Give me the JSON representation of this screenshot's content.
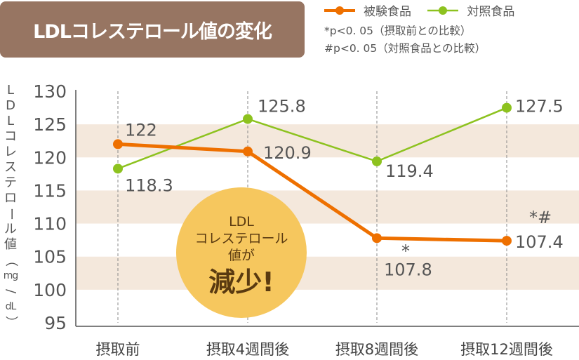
{
  "chart_data": {
    "type": "line",
    "title": "LDLコレステロール値の変化",
    "ylabel": "LDLコレステロール値（mg/dL）",
    "ylim": [
      95,
      130
    ],
    "yticks": [
      130,
      125,
      120,
      115,
      110,
      105,
      100,
      95
    ],
    "grid": "alternating horizontal bands",
    "categories": [
      "摂取前",
      "摂取4週間後",
      "摂取8週間後",
      "摂取12週間後"
    ],
    "series": [
      {
        "name": "被験食品",
        "color": "#ee7000",
        "values": [
          122,
          120.9,
          107.8,
          107.4
        ],
        "labels": [
          "122",
          "120.9",
          "107.8",
          "107.4"
        ],
        "marks": [
          "",
          "",
          "*",
          "*#"
        ]
      },
      {
        "name": "対照食品",
        "color": "#8dc21f",
        "values": [
          118.3,
          125.8,
          119.4,
          127.5
        ],
        "labels": [
          "118.3",
          "125.8",
          "119.4",
          "127.5"
        ]
      }
    ],
    "legend_position": "top-right",
    "notes": [
      "*p<0. 05（摂取前との比較）",
      "#p<0. 05（対照食品との比較）"
    ],
    "annotation": {
      "lines": [
        "LDL",
        "コレステロール",
        "値が"
      ],
      "emphasis": "減少!",
      "color": "#f6c75e"
    }
  }
}
